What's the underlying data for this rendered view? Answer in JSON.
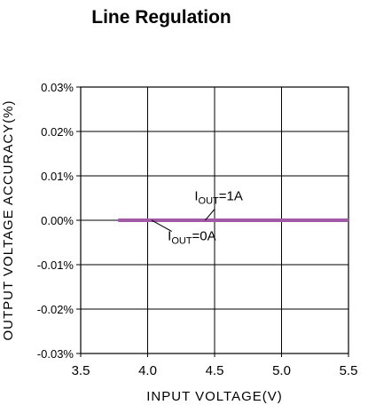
{
  "chart_data": {
    "type": "line",
    "title": "Line Regulation",
    "xlabel": "INPUT VOLTAGE(V)",
    "ylabel": "OUTPUT VOLTAGE ACCURACY(%)",
    "xlim": [
      3.5,
      5.5
    ],
    "ylim": [
      -0.03,
      0.03
    ],
    "x_ticks": [
      3.5,
      4.0,
      4.5,
      5.0,
      5.5
    ],
    "x_tick_labels": [
      "3.5",
      "4.0",
      "4.5",
      "5.0",
      "5.5"
    ],
    "y_ticks": [
      0.03,
      0.02,
      0.01,
      0.0,
      -0.01,
      -0.02,
      -0.03
    ],
    "y_tick_labels": [
      "0.03%",
      "0.02%",
      "0.01%",
      "0.00%",
      "-0.01%",
      "-0.02%",
      "-0.03%"
    ],
    "grid": true,
    "series": [
      {
        "name": "IOUT=1A",
        "label_main": "I",
        "label_sub": "OUT",
        "label_tail": "=1A",
        "x": [
          3.78,
          5.5
        ],
        "y": [
          0.0,
          0.0
        ],
        "color": "#a35aa6"
      },
      {
        "name": "IOUT=0A",
        "label_main": "I",
        "label_sub": "OUT",
        "label_tail": "=0A",
        "x": [
          3.78,
          5.5
        ],
        "y": [
          0.0,
          0.0
        ],
        "color": "#a35aa6"
      }
    ],
    "annotations": [
      {
        "series": 0,
        "text_x": 4.35,
        "text_y": 0.0045,
        "arrow_from_x": 4.5,
        "arrow_from_y": 0.0025,
        "arrow_to_x": 4.43,
        "arrow_to_y": 0.0
      },
      {
        "series": 1,
        "text_x": 4.15,
        "text_y": -0.0045,
        "arrow_from_x": 4.18,
        "arrow_from_y": -0.0025,
        "arrow_to_x": 4.03,
        "arrow_to_y": 0.0
      }
    ]
  }
}
